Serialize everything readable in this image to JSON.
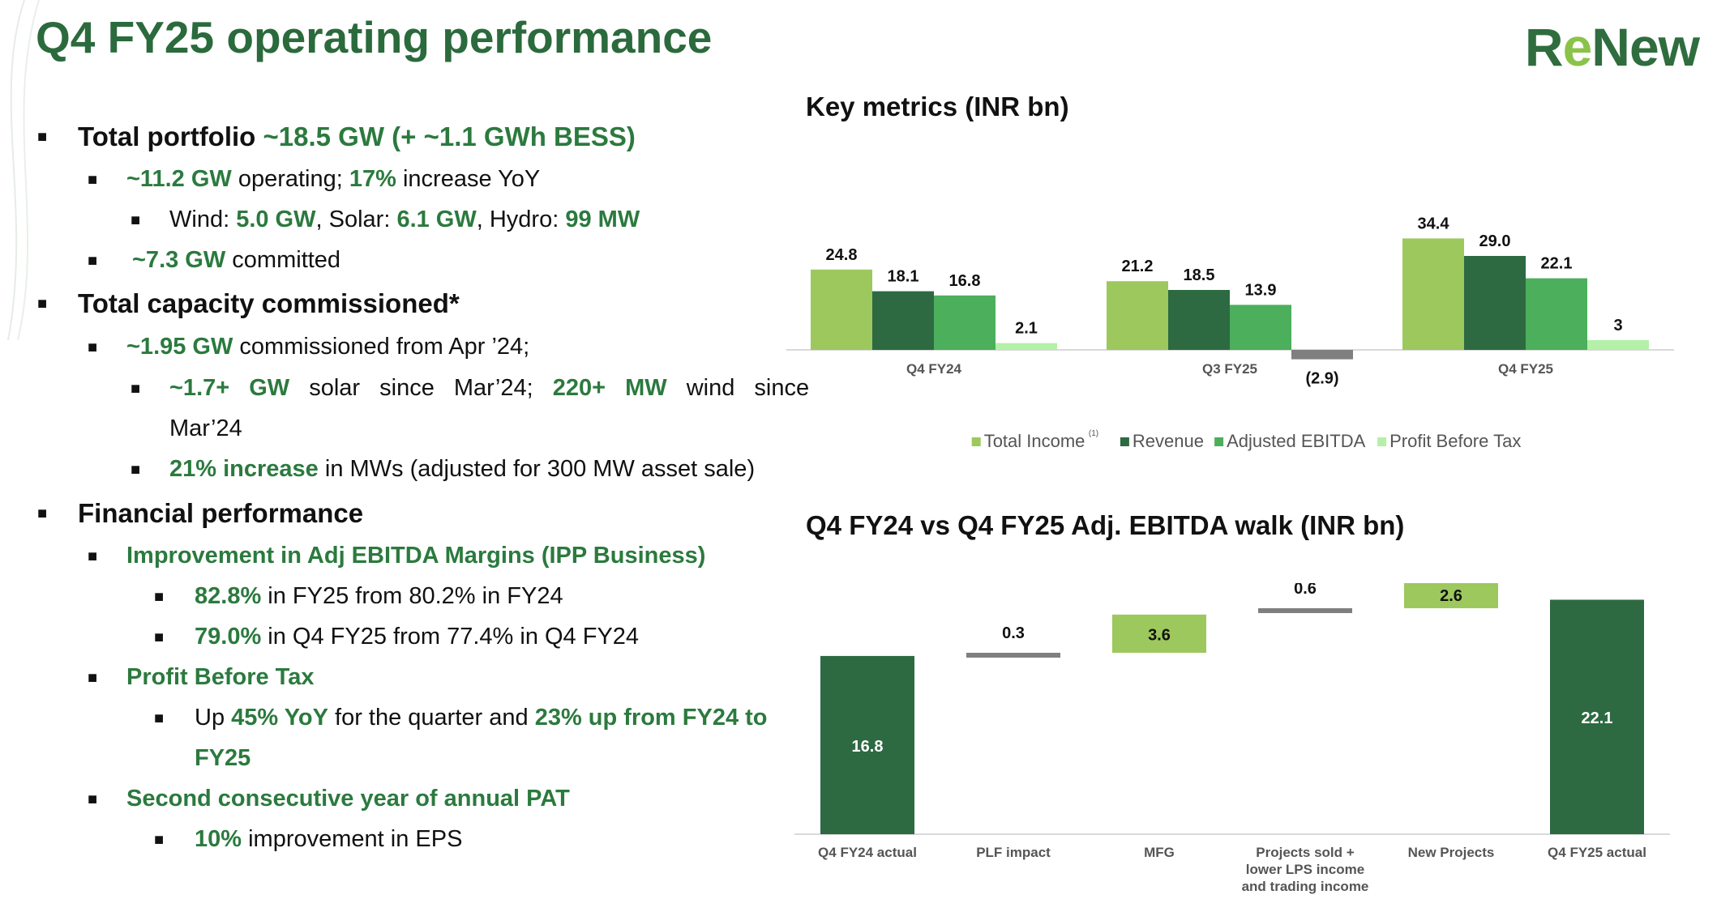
{
  "page_title": "Q4 FY25 operating performance",
  "logo": {
    "part1": "R",
    "part2": "e",
    "part3": "New"
  },
  "bullets": {
    "b1": {
      "t1": "Total portfolio",
      "t2": " ~18.5 GW (+ ~1.1 GWh BESS)"
    },
    "b2": {
      "t1": "~11.2 GW",
      "t2": " operating; ",
      "t3": "17%",
      "t4": " increase YoY"
    },
    "b3": {
      "t1": "Wind: ",
      "t2": "5.0 GW",
      "t3": ", Solar: ",
      "t4": "6.1 GW",
      "t5": ", Hydro: ",
      "t6": "99 MW"
    },
    "b4": {
      "t1": "~7.3 GW",
      "t2": " committed"
    },
    "b5": {
      "t1": "Total capacity commissioned*"
    },
    "b6": {
      "t1": "~1.95 GW",
      "t2": " commissioned from Apr ’24;"
    },
    "b7": {
      "t1": "~1.7+ GW",
      "t2": " solar since Mar’24; ",
      "t3": "220+ MW",
      "t4": " wind since",
      "t5": "Mar’24"
    },
    "b8": {
      "t1": "21% increase",
      "t2": " in MWs (adjusted for 300 MW asset sale)"
    },
    "b9": {
      "t1": "Financial performance"
    },
    "b10": {
      "t1": "Improvement in Adj EBITDA Margins (IPP Business)"
    },
    "b11": {
      "t1": "82.8%",
      "t2": " in FY25 from 80.2% in FY24"
    },
    "b12": {
      "t1": "79.0%",
      "t2": " in Q4 FY25 from 77.4% in Q4 FY24"
    },
    "b13": {
      "t1": "Profit Before Tax"
    },
    "b14": {
      "t1": "Up ",
      "t2": "45% YoY",
      "t3": " for the quarter and ",
      "t4": "23% up from FY24 to",
      "t5": "FY25"
    },
    "b15": {
      "t1": "Second consecutive year of annual PAT"
    },
    "b16": {
      "t1": "10%",
      "t2": " improvement in EPS"
    }
  },
  "chart_data": [
    {
      "type": "bar",
      "title": "Key metrics (INR bn)",
      "categories": [
        "Q4 FY24",
        "Q3 FY25",
        "Q4 FY25"
      ],
      "series": [
        {
          "name": "Total Income",
          "values": [
            24.8,
            21.2,
            34.4
          ],
          "labels": [
            "24.8",
            "21.2",
            "34.4"
          ],
          "color": "#9dc85d"
        },
        {
          "name": "Revenue",
          "values": [
            18.1,
            18.5,
            29.0
          ],
          "labels": [
            "18.1",
            "18.5",
            "29.0"
          ],
          "color": "#2d6a42"
        },
        {
          "name": "Adjusted EBITDA",
          "values": [
            16.8,
            13.9,
            22.1
          ],
          "labels": [
            "16.8",
            "13.9",
            "22.1"
          ],
          "color": "#4caf5c"
        },
        {
          "name": "Profit Before Tax",
          "values": [
            2.1,
            -2.9,
            3.0
          ],
          "labels": [
            "2.1",
            "(2.9)",
            "3"
          ],
          "color": "#b4f0a8"
        }
      ],
      "negative_color": "#7f7f7f",
      "legend_superscript": "(1)",
      "legend_position": "bottom"
    },
    {
      "type": "waterfall",
      "title": "Q4 FY24 vs Q4 FY25 Adj. EBITDA walk (INR bn)",
      "categories": [
        "Q4 FY24 actual",
        "PLF impact",
        "MFG",
        "Projects sold + lower LPS income and trading income",
        "New Projects",
        "Q4 FY25 actual"
      ],
      "category_lines": [
        [
          "Q4 FY24 actual"
        ],
        [
          "PLF impact"
        ],
        [
          "MFG"
        ],
        [
          "Projects sold +",
          "lower LPS income",
          "and trading income"
        ],
        [
          "New Projects"
        ],
        [
          "Q4 FY25 actual"
        ]
      ],
      "values": [
        16.8,
        0.3,
        3.6,
        0.6,
        2.6,
        22.1
      ],
      "labels": [
        "16.8",
        "0.3",
        "3.6",
        "0.6",
        "2.6",
        "22.1"
      ],
      "kinds": [
        "total",
        "delta",
        "delta",
        "delta",
        "delta",
        "total"
      ],
      "colors": {
        "total": "#2d6a42",
        "up": "#9dc85d",
        "neutral": "#7f7f7f"
      },
      "bar_kinds": [
        "total",
        "neutral",
        "up",
        "neutral",
        "up",
        "total"
      ]
    }
  ]
}
